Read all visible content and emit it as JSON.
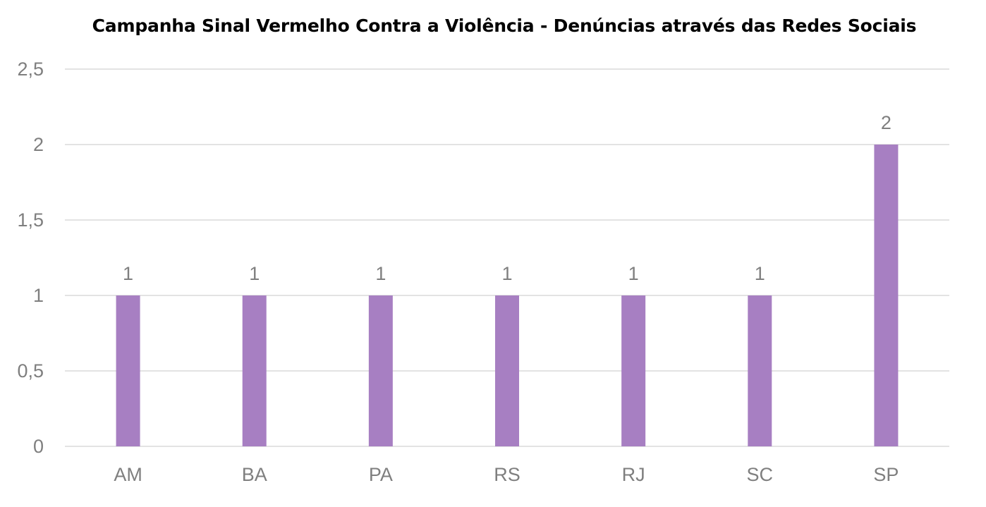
{
  "chart_data": {
    "type": "bar",
    "title": "Campanha Sinal Vermelho Contra a Violência - Denúncias através das Redes Sociais",
    "categories": [
      "AM",
      "BA",
      "PA",
      "RS",
      "RJ",
      "SC",
      "SP"
    ],
    "values": [
      1,
      1,
      1,
      1,
      1,
      1,
      2
    ],
    "data_labels": [
      "1",
      "1",
      "1",
      "1",
      "1",
      "1",
      "2"
    ],
    "ylim": [
      0,
      2.5
    ],
    "yticks": [
      0,
      0.5,
      1,
      1.5,
      2,
      2.5
    ],
    "ytick_labels": [
      "0",
      "0,5",
      "1",
      "1,5",
      "2",
      "2,5"
    ],
    "xlabel": "",
    "ylabel": "",
    "grid": true,
    "legend": "none",
    "bar_color": "#a77fc2",
    "grid_color": "#e3e3e3",
    "label_color": "#7f7f7f"
  }
}
